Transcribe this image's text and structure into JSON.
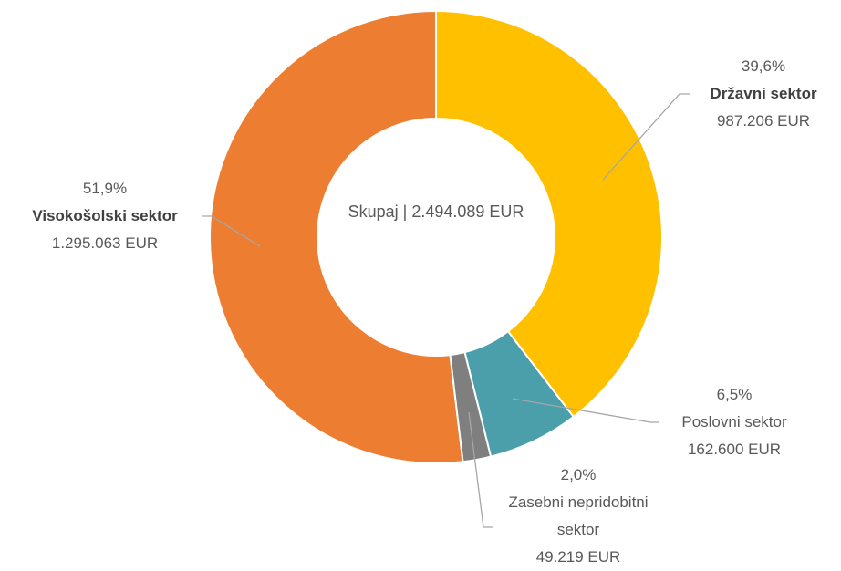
{
  "chart_data": {
    "type": "donut",
    "center_label": "Skupaj | 2.494.089 EUR",
    "categories": [
      "Državni sektor",
      "Poslovni sektor",
      "Zasebni nepridobitni sektor",
      "Visokošolski sektor"
    ],
    "values": [
      39.6,
      6.5,
      2.0,
      51.9
    ],
    "value_labels": [
      "39,6%",
      "6,5%",
      "2,0%",
      "51,9%"
    ],
    "amount_labels": [
      "987.206 EUR",
      "162.600 EUR",
      "49.219 EUR",
      "1.295.063 EUR"
    ],
    "colors": [
      "#FFC000",
      "#4A9FAA",
      "#7F7F7F",
      "#ED7D31"
    ],
    "bold_labels": [
      true,
      false,
      false,
      true
    ]
  }
}
